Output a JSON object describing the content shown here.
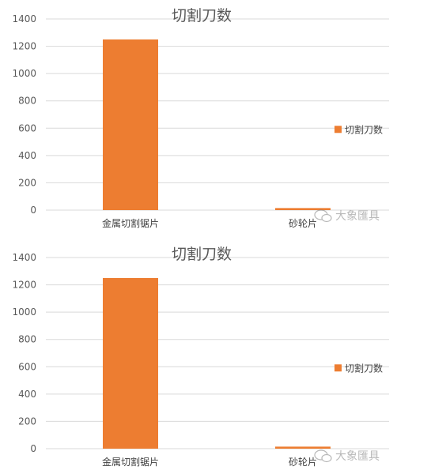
{
  "chart_data": [
    {
      "type": "bar",
      "title": "切割刀数",
      "categories": [
        "金属切割锯片",
        "砂轮片"
      ],
      "series": [
        {
          "name": "切割刀数",
          "values": [
            1250,
            15
          ],
          "color": "#ED7D31"
        }
      ],
      "ylim": [
        0,
        1400
      ],
      "yticks": [
        "0",
        "200",
        "400",
        "600",
        "800",
        "1000",
        "1200",
        "1400"
      ],
      "grid": true,
      "legend": "right"
    },
    {
      "type": "bar",
      "title": "切割刀数",
      "categories": [
        "金属切割锯片",
        "砂轮片"
      ],
      "series": [
        {
          "name": "切割刀数",
          "values": [
            1250,
            15
          ],
          "color": "#ED7D31"
        }
      ],
      "ylim": [
        0,
        1400
      ],
      "yticks": [
        "0",
        "200",
        "400",
        "600",
        "800",
        "1000",
        "1200",
        "1400"
      ],
      "grid": true,
      "legend": "right"
    }
  ],
  "watermark": {
    "text": "大象匯具",
    "icon": "wechat-icon"
  }
}
